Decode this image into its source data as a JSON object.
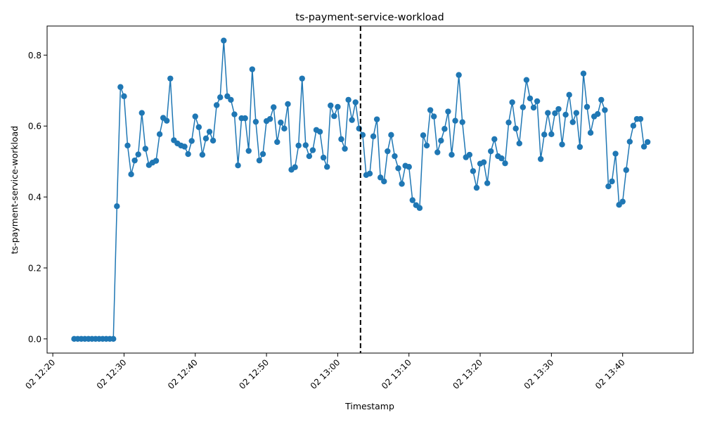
{
  "chart_data": {
    "type": "line",
    "title": "ts-payment-service-workload",
    "xlabel": "Timestamp",
    "ylabel": "ts-payment-service-workload",
    "x_start": "12:23",
    "x_step_minutes": 0.5,
    "x_ticks": [
      {
        "label": "02 12:20",
        "minute": 740
      },
      {
        "label": "02 12:30",
        "minute": 750
      },
      {
        "label": "02 12:40",
        "minute": 760
      },
      {
        "label": "02 12:50",
        "minute": 770
      },
      {
        "label": "02 13:00",
        "minute": 780
      },
      {
        "label": "02 13:10",
        "minute": 790
      },
      {
        "label": "02 13:20",
        "minute": 800
      },
      {
        "label": "02 13:30",
        "minute": 810
      },
      {
        "label": "02 13:40",
        "minute": 820
      }
    ],
    "y_ticks": [
      "0.0",
      "0.2",
      "0.4",
      "0.6",
      "0.8"
    ],
    "xlim_minutes": [
      739.2,
      829.9
    ],
    "ylim": [
      -0.04,
      0.882
    ],
    "vline_minute": 783.2,
    "line_color": "#1f77b4",
    "series": [
      {
        "values": [
          0,
          0,
          0,
          0,
          0,
          0,
          0,
          0,
          0,
          0,
          0,
          0,
          0.374,
          0.71,
          0.684,
          0.545,
          0.464,
          0.503,
          0.52,
          0.637,
          0.536,
          0.49,
          0.497,
          0.502,
          0.577,
          0.623,
          0.615,
          0.734,
          0.56,
          0.551,
          0.545,
          0.542,
          0.521,
          0.558,
          0.627,
          0.597,
          0.519,
          0.565,
          0.584,
          0.559,
          0.659,
          0.681,
          0.841,
          0.684,
          0.674,
          0.633,
          0.489,
          0.622,
          0.622,
          0.53,
          0.76,
          0.612,
          0.503,
          0.521,
          0.614,
          0.62,
          0.653,
          0.555,
          0.61,
          0.593,
          0.662,
          0.477,
          0.484,
          0.545,
          0.734,
          0.546,
          0.515,
          0.532,
          0.589,
          0.584,
          0.511,
          0.485,
          0.658,
          0.628,
          0.654,
          0.563,
          0.536,
          0.674,
          0.617,
          0.667,
          0.593,
          0.575,
          0.462,
          0.466,
          0.571,
          0.619,
          0.455,
          0.444,
          0.529,
          0.575,
          0.515,
          0.481,
          0.437,
          0.488,
          0.485,
          0.391,
          0.377,
          0.369,
          0.574,
          0.545,
          0.645,
          0.627,
          0.526,
          0.559,
          0.592,
          0.641,
          0.519,
          0.615,
          0.744,
          0.611,
          0.512,
          0.519,
          0.473,
          0.426,
          0.494,
          0.498,
          0.439,
          0.529,
          0.563,
          0.515,
          0.509,
          0.495,
          0.61,
          0.667,
          0.593,
          0.551,
          0.653,
          0.73,
          0.678,
          0.652,
          0.67,
          0.507,
          0.576,
          0.637,
          0.577,
          0.636,
          0.648,
          0.548,
          0.632,
          0.688,
          0.611,
          0.637,
          0.541,
          0.748,
          0.654,
          0.581,
          0.627,
          0.634,
          0.674,
          0.645,
          0.43,
          0.444,
          0.522,
          0.378,
          0.387,
          0.476,
          0.556,
          0.601,
          0.62,
          0.62,
          0.542,
          0.555
        ]
      }
    ]
  }
}
